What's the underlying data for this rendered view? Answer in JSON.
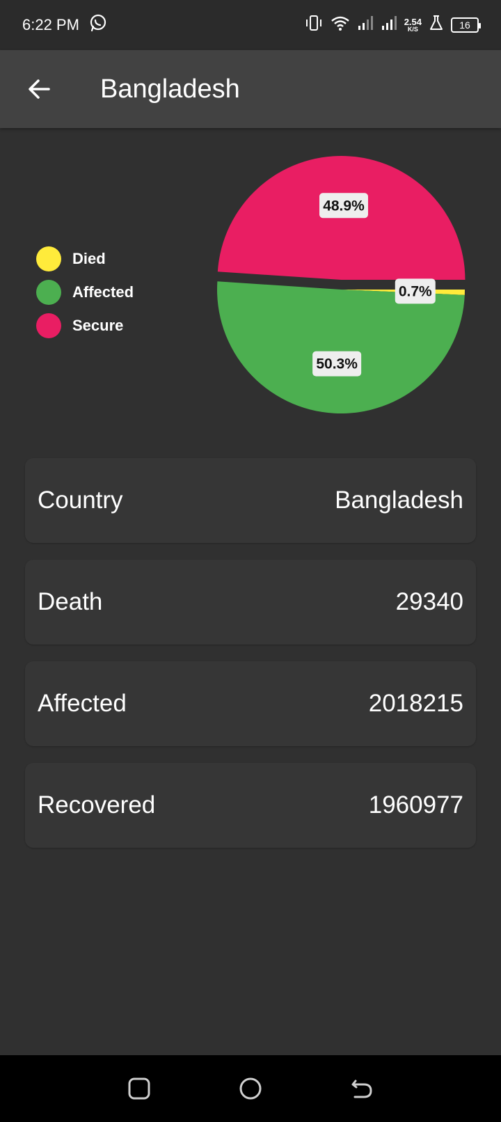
{
  "status_bar": {
    "time": "6:22 PM",
    "net_speed_value": "2.54",
    "net_speed_unit": "K/S",
    "battery_level": "16"
  },
  "app_bar": {
    "title": "Bangladesh"
  },
  "legend": [
    {
      "label": "Died",
      "color": "#FFEB3B"
    },
    {
      "label": "Affected",
      "color": "#4CAF50"
    },
    {
      "label": "Secure",
      "color": "#E91E63"
    }
  ],
  "chart_data": {
    "type": "pie",
    "slices": [
      {
        "name": "Died",
        "value": 0.7,
        "label": "0.7%",
        "color": "#FFEB3B"
      },
      {
        "name": "Affected",
        "value": 50.3,
        "label": "50.3%",
        "color": "#4CAF50"
      },
      {
        "name": "Secure",
        "value": 48.9,
        "label": "48.9%",
        "color": "#E91E63"
      }
    ],
    "start_angle_deg": 0,
    "emphasized_slice": "Secure"
  },
  "cards": [
    {
      "label": "Country",
      "value": "Bangladesh"
    },
    {
      "label": "Death",
      "value": "29340"
    },
    {
      "label": "Affected",
      "value": "2018215"
    },
    {
      "label": "Recovered",
      "value": "1960977"
    }
  ]
}
